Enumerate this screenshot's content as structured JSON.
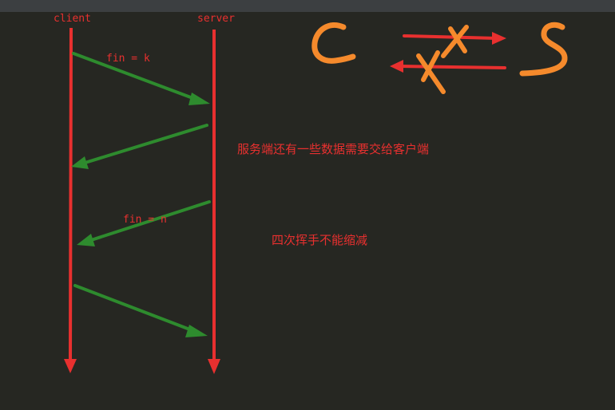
{
  "colors": {
    "background": "#262722",
    "topbar": "#3c3f41",
    "lifeline": "#e8302f",
    "message": "#2e8b2e",
    "label": "#e8302f",
    "doodle": "#f58a2c"
  },
  "lifelines": {
    "client": "client",
    "server": "server"
  },
  "messages": {
    "fin1": "fin = k",
    "fin2": "fin = n"
  },
  "notes": {
    "server_data": "服务端还有一些数据需要交给客户端",
    "four_wave": "四次挥手不能缩减"
  }
}
